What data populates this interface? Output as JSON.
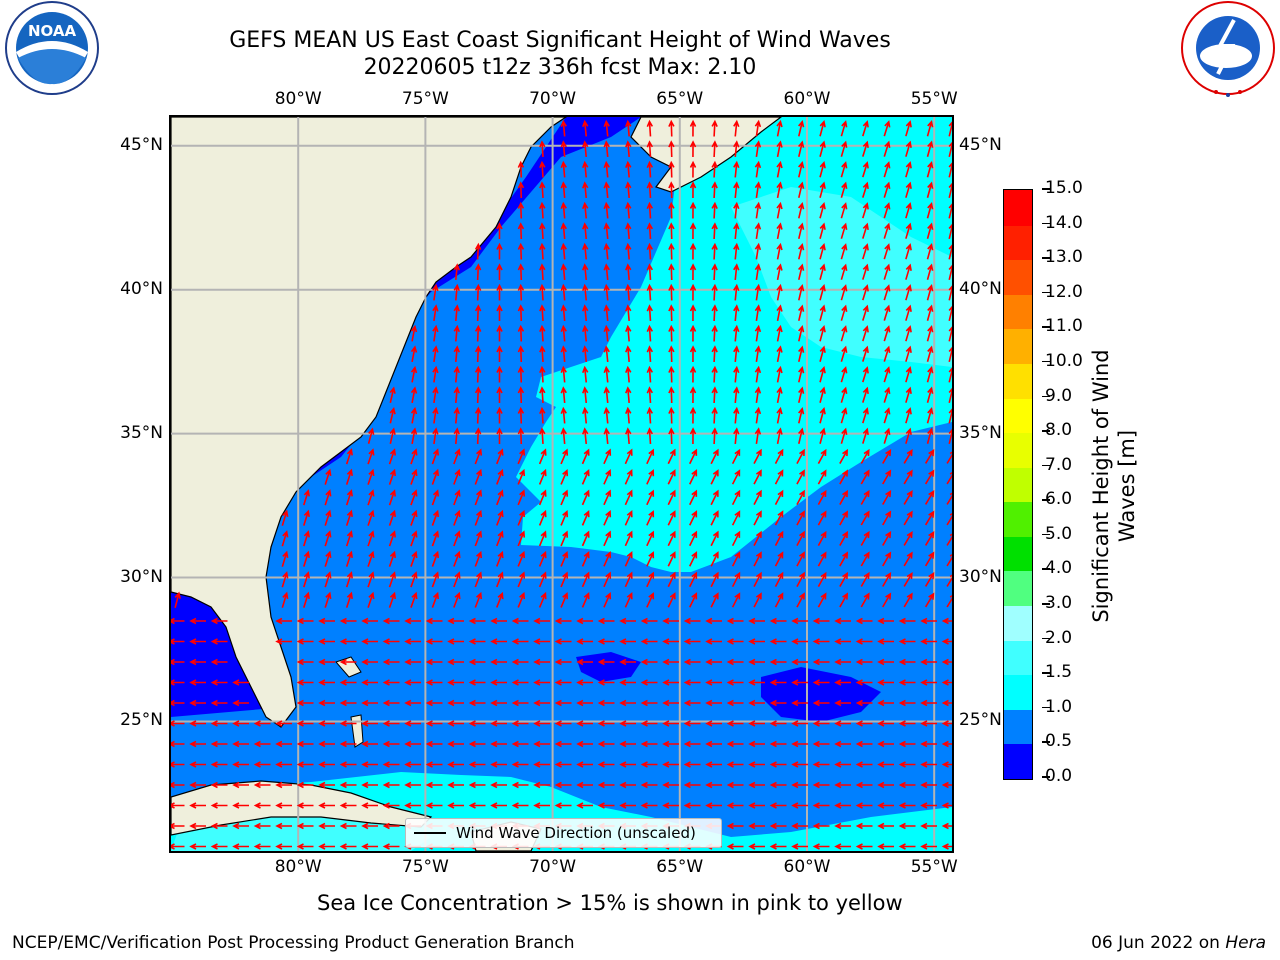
{
  "header": {
    "title_line1": "GEFS MEAN US East Coast Significant Height of Wind Waves",
    "title_line2": "20220605 t12z 336h fcst   Max: 2.10"
  },
  "logos": {
    "left": {
      "name": "noaa-logo",
      "text": "NOAA",
      "ring_text": "NATIONAL OCEANIC AND ATMOSPHERIC ADMINISTRATION · U.S. DEPARTMENT OF COMMERCE"
    },
    "right": {
      "name": "nws-logo",
      "ring_text": "NATIONAL WEATHER SERVICE"
    }
  },
  "map": {
    "lon_ticks_top": [
      "80°W",
      "75°W",
      "70°W",
      "65°W",
      "60°W",
      "55°W"
    ],
    "lon_ticks_bottom": [
      "80°W",
      "75°W",
      "70°W",
      "65°W",
      "60°W",
      "55°W"
    ],
    "lat_ticks_left": [
      "45°N",
      "40°N",
      "35°N",
      "30°N",
      "25°N"
    ],
    "lat_ticks_right": [
      "45°N",
      "40°N",
      "35°N",
      "30°N",
      "25°N"
    ],
    "lon_values": [
      -80,
      -75,
      -70,
      -65,
      -60,
      -55
    ],
    "lat_values": [
      45,
      40,
      35,
      30,
      25
    ],
    "extent": {
      "lon_min": -85,
      "lon_max": -54.3,
      "lat_min": 20.5,
      "lat_max": 46
    },
    "colors": {
      "land": "#efefdc",
      "grid": "#b4b4b4",
      "arrow": "#ff0000",
      "coast": "#000000"
    },
    "legend_label": "Wind Wave Direction (unscaled)"
  },
  "colorbar": {
    "label": "Significant Height of Wind Waves [m]",
    "label_line1": "Significant Height of Wind",
    "label_line2": "Waves [m]",
    "vmin": 0.0,
    "vmax": 15.0,
    "ticks": [
      "0.0",
      "0.5",
      "1.0",
      "1.5",
      "2.0",
      "3.0",
      "4.0",
      "5.0",
      "6.0",
      "7.0",
      "8.0",
      "9.0",
      "10.0",
      "11.0",
      "12.0",
      "13.0",
      "14.0",
      "15.0"
    ],
    "colors": [
      "#0000ff",
      "#0080ff",
      "#00ffff",
      "#40ffff",
      "#a0ffff",
      "#50ff80",
      "#00e000",
      "#50f000",
      "#c0ff00",
      "#e8ff00",
      "#ffff00",
      "#ffe000",
      "#ffb000",
      "#ff8000",
      "#ff5000",
      "#ff2000",
      "#ff0000"
    ]
  },
  "caption": "Sea Ice Concentration > 15% is shown in pink to yellow",
  "footer": {
    "left": "NCEP/EMC/Verification Post Processing Product Generation Branch",
    "right_date": "06 Jun 2022 on ",
    "right_host": "Hera"
  }
}
